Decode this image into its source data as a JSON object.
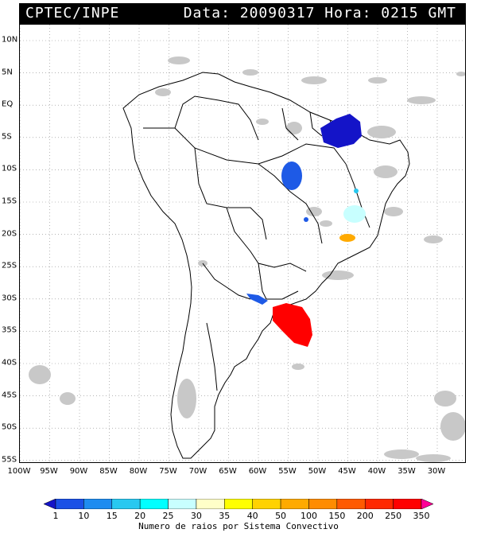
{
  "header": {
    "title": "CPTEC/INPE",
    "datestamp": "Data: 20090317 Hora: 0215 GMT"
  },
  "map": {
    "lat_labels": [
      "10N",
      "5N",
      "EQ",
      "5S",
      "10S",
      "15S",
      "20S",
      "25S",
      "30S",
      "35S",
      "40S",
      "45S",
      "50S",
      "55S"
    ],
    "lon_labels": [
      "100W",
      "95W",
      "90W",
      "85W",
      "80W",
      "75W",
      "70W",
      "65W",
      "60W",
      "55W",
      "50W",
      "45W",
      "40W",
      "35W",
      "30W"
    ],
    "colors": {
      "cloud": "#c8c8c8",
      "coast": "#000000"
    }
  },
  "colorbar": {
    "labels": [
      "1",
      "10",
      "15",
      "20",
      "25",
      "30",
      "35",
      "40",
      "50",
      "100",
      "150",
      "200",
      "250",
      "350"
    ],
    "colors": [
      "#1414c8",
      "#1a50e6",
      "#1e8cf0",
      "#28c8f0",
      "#00ffff",
      "#c8ffff",
      "#ffffc8",
      "#ffff00",
      "#ffd200",
      "#ffaa00",
      "#ff8c00",
      "#ff5a00",
      "#ff2800",
      "#ff0000",
      "#ff0096"
    ],
    "caption": "Numero de raios por Sistema Convectivo"
  }
}
